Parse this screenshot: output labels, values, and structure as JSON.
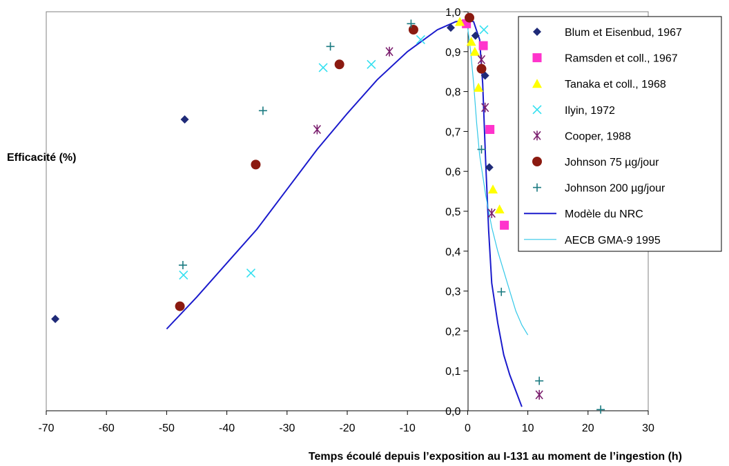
{
  "chart_data": {
    "type": "scatter",
    "xlabel": "Temps écoulé depuis l’exposition au I-131 au moment de l’ingestion (h)",
    "ylabel": "Efficacité (%)",
    "xlim": [
      -70,
      30
    ],
    "ylim": [
      0,
      1
    ],
    "x_ticks": [
      "-70",
      "-60",
      "-50",
      "-40",
      "-30",
      "-20",
      "-10",
      "0",
      "10",
      "20",
      "30"
    ],
    "y_ticks": [
      "0,0",
      "0,1",
      "0,2",
      "0,3",
      "0,4",
      "0,5",
      "0,6",
      "0,7",
      "0,8",
      "0,9",
      "1,0"
    ],
    "legend_position": "top-right",
    "grid": false,
    "series": [
      {
        "name": "Blum et Eisenbud, 1967",
        "kind": "points",
        "marker": "diamond",
        "color": "#1f2a78",
        "points": [
          [
            -68.5,
            0.23
          ],
          [
            -47,
            0.73
          ],
          [
            -2.8,
            0.96
          ],
          [
            1.3,
            0.94
          ],
          [
            2.9,
            0.84
          ],
          [
            3.6,
            0.61
          ]
        ]
      },
      {
        "name": "Ramsden et coll., 1967",
        "kind": "points",
        "marker": "square",
        "color": "#ff33cc",
        "points": [
          [
            -0.2,
            0.97
          ],
          [
            2.6,
            0.915
          ],
          [
            3.7,
            0.705
          ],
          [
            6.1,
            0.465
          ]
        ]
      },
      {
        "name": "Tanaka et coll., 1968",
        "kind": "points",
        "marker": "triangle",
        "color": "#ffff00",
        "points": [
          [
            -1.3,
            0.975
          ],
          [
            0.6,
            0.925
          ],
          [
            1.2,
            0.9
          ],
          [
            1.8,
            0.81
          ],
          [
            4.2,
            0.555
          ],
          [
            5.3,
            0.505
          ]
        ]
      },
      {
        "name": "Ilyin, 1972",
        "kind": "points",
        "marker": "x",
        "color": "#33e0f0",
        "points": [
          [
            -47.2,
            0.34
          ],
          [
            -36,
            0.345
          ],
          [
            -24,
            0.86
          ],
          [
            -16,
            0.868
          ],
          [
            -7.8,
            0.93
          ],
          [
            2.7,
            0.955
          ]
        ]
      },
      {
        "name": "Cooper, 1988",
        "kind": "points",
        "marker": "asterisk",
        "color": "#7b1f6e",
        "points": [
          [
            -25,
            0.705
          ],
          [
            -13,
            0.9
          ],
          [
            2.3,
            0.88
          ],
          [
            2.9,
            0.76
          ],
          [
            4.0,
            0.495
          ],
          [
            11.9,
            0.04
          ]
        ]
      },
      {
        "name": "Johnson 75 µg/jour",
        "kind": "points",
        "marker": "circle",
        "color": "#8b1a10",
        "points": [
          [
            -47.8,
            0.262
          ],
          [
            -35.2,
            0.617
          ],
          [
            -21.3,
            0.868
          ],
          [
            -9,
            0.955
          ],
          [
            0.3,
            0.985
          ],
          [
            2.3,
            0.857
          ]
        ]
      },
      {
        "name": "Johnson 200 µg/jour",
        "kind": "points",
        "marker": "plus",
        "color": "#1a7a80",
        "points": [
          [
            -47.3,
            0.365
          ],
          [
            -34,
            0.752
          ],
          [
            -22.8,
            0.913
          ],
          [
            -9.4,
            0.97
          ],
          [
            2.3,
            0.655
          ],
          [
            5.6,
            0.298
          ],
          [
            11.9,
            0.075
          ],
          [
            22.1,
            0.003
          ]
        ]
      },
      {
        "name": "Modèle du NRC",
        "kind": "line",
        "color": "#1a1acc",
        "points": [
          [
            -50,
            0.205
          ],
          [
            -45,
            0.285
          ],
          [
            -40,
            0.37
          ],
          [
            -35,
            0.455
          ],
          [
            -30,
            0.555
          ],
          [
            -25,
            0.655
          ],
          [
            -20,
            0.745
          ],
          [
            -15,
            0.83
          ],
          [
            -10,
            0.9
          ],
          [
            -5,
            0.955
          ],
          [
            -2,
            0.975
          ],
          [
            0,
            0.98
          ],
          [
            1,
            0.975
          ],
          [
            2,
            0.93
          ],
          [
            2.5,
            0.82
          ],
          [
            3,
            0.62
          ],
          [
            3.5,
            0.45
          ],
          [
            4,
            0.32
          ],
          [
            5,
            0.22
          ],
          [
            6,
            0.14
          ],
          [
            7,
            0.09
          ],
          [
            8,
            0.05
          ],
          [
            9,
            0.01
          ]
        ]
      },
      {
        "name": "AECB GMA-9 1995",
        "kind": "line",
        "color": "#33c8e8",
        "points": [
          [
            -0.2,
            0.985
          ],
          [
            0.5,
            0.9
          ],
          [
            1,
            0.82
          ],
          [
            1.5,
            0.72
          ],
          [
            2,
            0.64
          ],
          [
            3,
            0.54
          ],
          [
            4,
            0.46
          ],
          [
            5,
            0.4
          ],
          [
            6,
            0.35
          ],
          [
            7,
            0.3
          ],
          [
            8,
            0.25
          ],
          [
            9,
            0.215
          ],
          [
            10,
            0.19
          ]
        ]
      }
    ]
  }
}
